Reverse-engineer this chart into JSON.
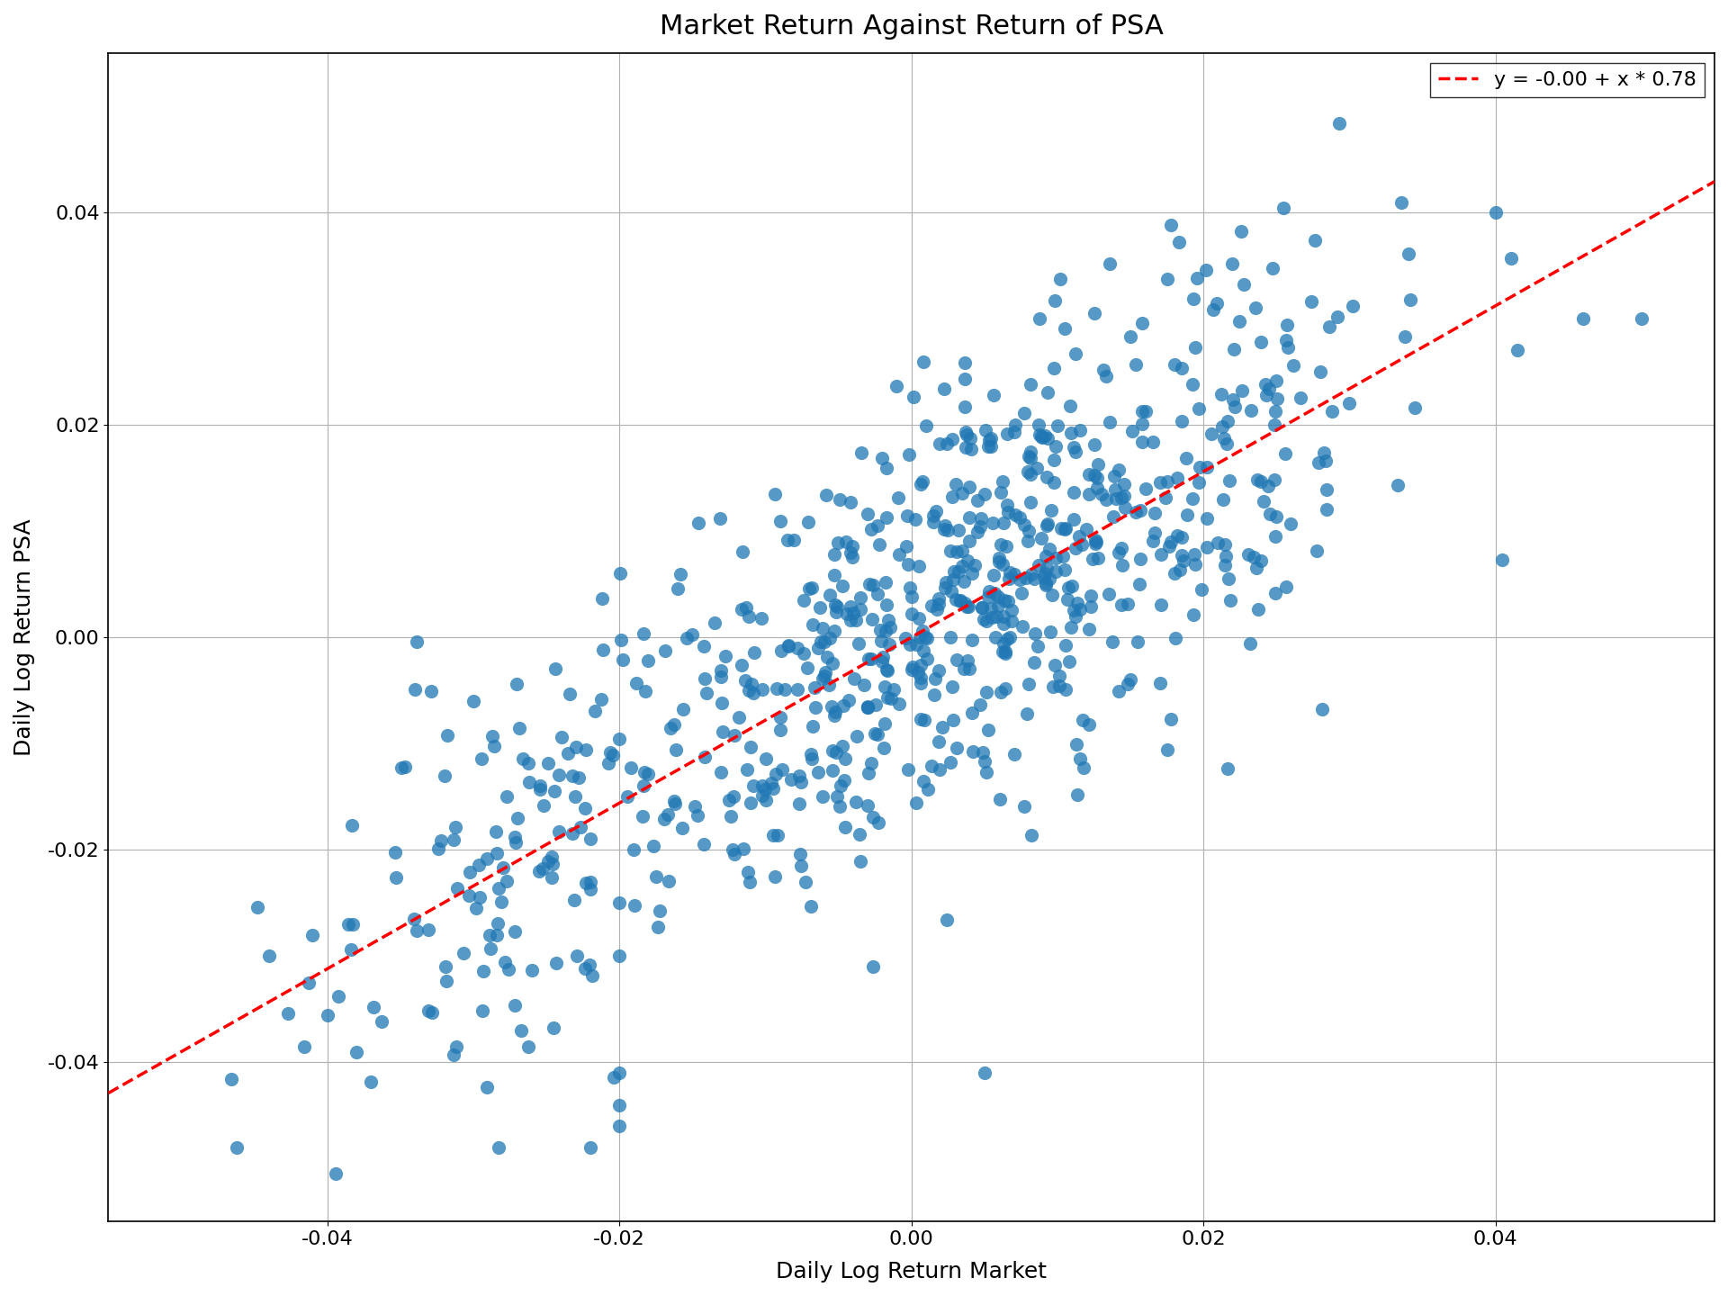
{
  "title": "Market Return Against Return of PSA",
  "xlabel": "Daily Log Return Market",
  "ylabel": "Daily Log Return PSA",
  "legend_label": "y = -0.00 + x * 0.78",
  "xlim": [
    -0.055,
    0.055
  ],
  "ylim": [
    -0.055,
    0.055
  ],
  "xticks": [
    -0.04,
    -0.02,
    0.0,
    0.02,
    0.04
  ],
  "yticks": [
    -0.04,
    -0.02,
    0.0,
    0.02,
    0.04
  ],
  "scatter_color": "#1f77b4",
  "scatter_alpha": 0.75,
  "scatter_size": 120,
  "line_color": "red",
  "line_style": "--",
  "line_width": 2.5,
  "intercept": 0.0,
  "slope": 0.78,
  "seed": 42,
  "n_points": 800,
  "title_fontsize": 22,
  "label_fontsize": 18,
  "tick_fontsize": 16,
  "legend_fontsize": 16,
  "background_color": "#ffffff",
  "grid_color": "#b0b0b0",
  "grid_alpha": 1.0,
  "grid_linewidth": 0.8
}
